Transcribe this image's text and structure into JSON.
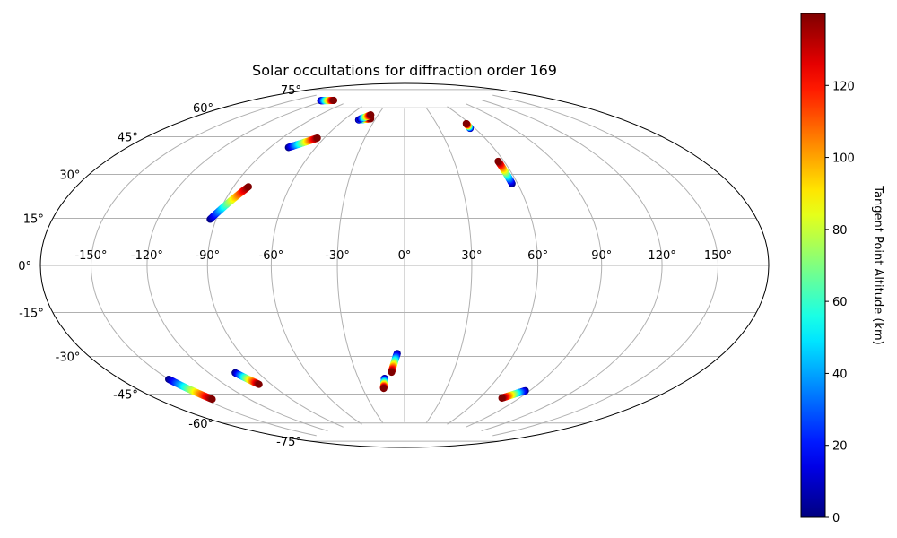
{
  "chart_data": {
    "type": "scatter",
    "projection": "hammer",
    "title": "Solar occultations for diffraction order 169",
    "grid": true,
    "lon_ticks": [
      -150,
      -120,
      -90,
      -60,
      -30,
      0,
      30,
      60,
      90,
      120,
      150
    ],
    "lon_tick_labels": [
      "-150°",
      "-120°",
      "-90°",
      "-60°",
      "-30°",
      "0°",
      "30°",
      "60°",
      "90°",
      "120°",
      "150°"
    ],
    "lat_ticks": [
      75,
      60,
      45,
      30,
      15,
      0,
      -15,
      -30,
      -45,
      -60,
      -75
    ],
    "lat_tick_labels": [
      "75°",
      "60°",
      "45°",
      "30°",
      "15°",
      "0°",
      "-15°",
      "-30°",
      "-45°",
      "-60°",
      "-75°"
    ],
    "colorbar": {
      "label": "Tangent Point Altitude (km)",
      "colormap": "jet",
      "range": [
        0,
        140
      ],
      "ticks": [
        0,
        20,
        40,
        60,
        80,
        100,
        120
      ],
      "tick_labels": [
        "0",
        "20",
        "40",
        "60",
        "80",
        "100",
        "120"
      ]
    },
    "series": [
      {
        "start": [
          -125,
          74
        ],
        "end": [
          -112,
          75.5
        ],
        "alt_start": 0,
        "alt_end": 140
      },
      {
        "start": [
          -78,
          52
        ],
        "end": [
          -65,
          57.5
        ],
        "alt_start": 0,
        "alt_end": 140
      },
      {
        "start": [
          -93,
          19
        ],
        "end": [
          -82,
          33.5
        ],
        "alt_start": 0,
        "alt_end": 140
      },
      {
        "start": [
          -46,
          68
        ],
        "end": [
          -35,
          69
        ],
        "alt_start": 0,
        "alt_end": 140
      },
      {
        "start": [
          -45,
          68.5
        ],
        "end": [
          -38,
          71
        ],
        "alt_start": 0,
        "alt_end": 140
      },
      {
        "start": [
          56,
          63
        ],
        "end": [
          57,
          65.5
        ],
        "alt_start": 0,
        "alt_end": 140
      },
      {
        "start": [
          57,
          36
        ],
        "end": [
          56.5,
          46.5
        ],
        "alt_start": 0,
        "alt_end": 140
      },
      {
        "start": [
          -150,
          -43
        ],
        "end": [
          -145,
          -53
        ],
        "alt_start": 0,
        "alt_end": 140
      },
      {
        "start": [
          -104,
          -45
        ],
        "end": [
          -98,
          -51
        ],
        "alt_start": 0,
        "alt_end": 140
      },
      {
        "start": [
          -4,
          -40
        ],
        "end": [
          -8,
          -49
        ],
        "alt_start": 0,
        "alt_end": 140
      },
      {
        "start": [
          -13,
          -52
        ],
        "end": [
          -15,
          -57
        ],
        "alt_start": 0,
        "alt_end": 140
      },
      {
        "start": [
          87,
          -55
        ],
        "end": [
          77,
          -59.5
        ],
        "alt_start": 0,
        "alt_end": 140
      }
    ]
  }
}
